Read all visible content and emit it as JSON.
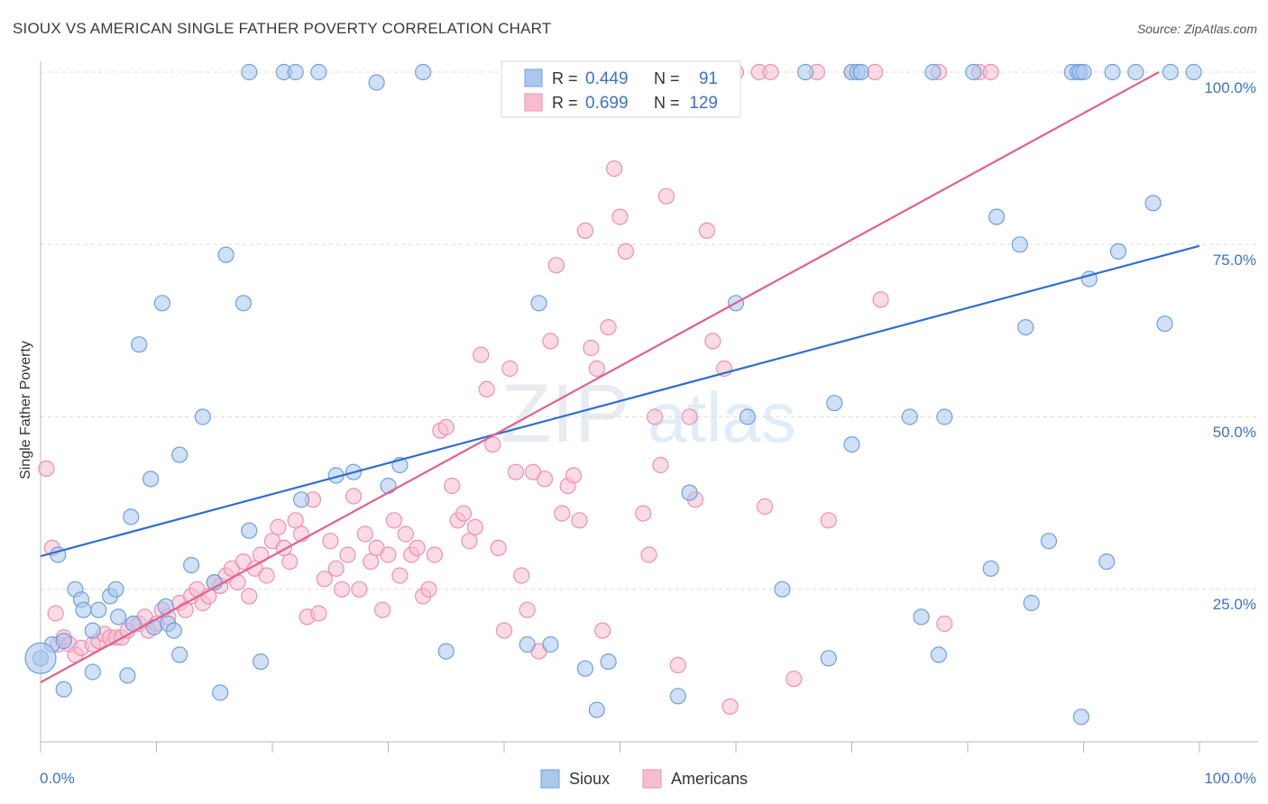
{
  "title": "SIOUX VS AMERICAN SINGLE FATHER POVERTY CORRELATION CHART",
  "source": "Source: ZipAtlas.com",
  "watermark": {
    "zip": "ZIP",
    "atlas": "atlas"
  },
  "colors": {
    "sioux": "#6fa0dd",
    "sioux_fill": "#aac7ec",
    "sioux_line": "#2f6fcb",
    "americans": "#ee8fae",
    "americans_fill": "#f6bdd0",
    "americans_line": "#e2608c",
    "axis_label": "#3b73c8"
  },
  "legend_top": {
    "rows": [
      {
        "r_label": "R =",
        "r_value": "0.449",
        "n_label": "N =",
        "n_value": "91"
      },
      {
        "r_label": "R =",
        "r_value": "0.699",
        "n_label": "N =",
        "n_value": "129"
      }
    ]
  },
  "legend_bottom": {
    "items": [
      "Sioux",
      "Americans"
    ]
  },
  "chart_data": {
    "type": "scatter",
    "title": "SIOUX VS AMERICAN SINGLE FATHER POVERTY CORRELATION CHART",
    "ylabel": "Single Father Poverty",
    "xlabel": "",
    "xlim": [
      0,
      100
    ],
    "ylim": [
      0,
      100
    ],
    "x_tick_labels": [
      "0.0%",
      "100.0%"
    ],
    "y_tick_labels": [
      "25.0%",
      "50.0%",
      "75.0%",
      "100.0%"
    ],
    "y_ticks": [
      25,
      50,
      75,
      100
    ],
    "grid": true,
    "legend": "top-center",
    "series": [
      {
        "name": "Sioux",
        "r": 0.449,
        "n": 91,
        "trend": {
          "x": [
            0,
            100
          ],
          "y": [
            29.8,
            74.8
          ]
        },
        "points": [
          [
            0,
            15
          ],
          [
            1,
            17
          ],
          [
            1.5,
            30
          ],
          [
            2,
            10.5
          ],
          [
            2,
            17.5
          ],
          [
            3,
            25
          ],
          [
            3.5,
            23.5
          ],
          [
            3.7,
            22
          ],
          [
            4.5,
            13
          ],
          [
            4.5,
            19
          ],
          [
            5,
            22
          ],
          [
            6,
            24
          ],
          [
            6.5,
            25
          ],
          [
            6.7,
            21
          ],
          [
            7.5,
            12.5
          ],
          [
            7.8,
            35.5
          ],
          [
            8,
            20
          ],
          [
            8.5,
            60.5
          ],
          [
            9.5,
            41
          ],
          [
            9.8,
            19.5
          ],
          [
            10.5,
            66.5
          ],
          [
            10.8,
            22.5
          ],
          [
            11,
            20
          ],
          [
            11.5,
            19
          ],
          [
            12,
            15.5
          ],
          [
            12,
            44.5
          ],
          [
            13,
            28.5
          ],
          [
            14,
            50
          ],
          [
            15,
            26
          ],
          [
            15.5,
            10
          ],
          [
            16,
            73.5
          ],
          [
            17.5,
            66.5
          ],
          [
            18,
            33.5
          ],
          [
            18,
            100
          ],
          [
            19,
            14.5
          ],
          [
            21,
            100
          ],
          [
            22,
            100
          ],
          [
            22.5,
            38
          ],
          [
            24,
            100
          ],
          [
            25.5,
            41.5
          ],
          [
            27,
            42
          ],
          [
            29,
            98.5
          ],
          [
            30,
            40
          ],
          [
            31,
            43
          ],
          [
            33,
            100
          ],
          [
            35,
            16
          ],
          [
            42,
            17
          ],
          [
            43,
            66.5
          ],
          [
            44,
            17
          ],
          [
            47,
            13.5
          ],
          [
            48,
            7.5
          ],
          [
            49,
            14.5
          ],
          [
            55,
            9.5
          ],
          [
            56,
            39
          ],
          [
            59,
            100
          ],
          [
            60,
            66.5
          ],
          [
            61,
            50
          ],
          [
            64,
            25
          ],
          [
            66,
            100
          ],
          [
            68,
            15
          ],
          [
            68.5,
            52
          ],
          [
            70,
            100
          ],
          [
            70.5,
            100
          ],
          [
            70.8,
            100
          ],
          [
            70,
            46
          ],
          [
            75,
            50
          ],
          [
            76,
            21
          ],
          [
            77,
            100
          ],
          [
            77.5,
            15.5
          ],
          [
            78,
            50
          ],
          [
            80.5,
            100
          ],
          [
            82,
            28
          ],
          [
            82.5,
            79
          ],
          [
            84.5,
            75
          ],
          [
            85,
            63
          ],
          [
            85.5,
            23
          ],
          [
            87,
            32
          ],
          [
            89,
            100
          ],
          [
            89.5,
            100
          ],
          [
            89.7,
            100
          ],
          [
            89.8,
            6.5
          ],
          [
            90,
            100
          ],
          [
            90.5,
            70
          ],
          [
            92,
            29
          ],
          [
            92.5,
            100
          ],
          [
            93,
            74
          ],
          [
            94.5,
            100
          ],
          [
            96,
            81
          ],
          [
            97,
            63.5
          ],
          [
            97.5,
            100
          ],
          [
            99.5,
            100
          ]
        ]
      },
      {
        "name": "Americans",
        "r": 0.699,
        "n": 129,
        "trend": {
          "x": [
            0,
            96.5
          ],
          "y": [
            11.5,
            100
          ]
        },
        "points": [
          [
            0.5,
            42.5
          ],
          [
            1,
            31
          ],
          [
            1.3,
            21.5
          ],
          [
            1.5,
            17
          ],
          [
            2,
            18
          ],
          [
            2.5,
            17
          ],
          [
            3,
            15.5
          ],
          [
            3.5,
            16.5
          ],
          [
            4.5,
            17
          ],
          [
            5,
            17.5
          ],
          [
            5.5,
            18.5
          ],
          [
            6,
            18
          ],
          [
            6.5,
            18
          ],
          [
            7,
            18
          ],
          [
            7.5,
            19
          ],
          [
            8,
            20
          ],
          [
            8.5,
            20
          ],
          [
            9,
            21
          ],
          [
            9.3,
            19
          ],
          [
            10,
            20
          ],
          [
            10.5,
            22
          ],
          [
            11,
            21
          ],
          [
            12,
            23
          ],
          [
            12.5,
            22
          ],
          [
            13,
            24
          ],
          [
            13.5,
            25
          ],
          [
            14,
            23
          ],
          [
            14.5,
            24
          ],
          [
            15,
            26
          ],
          [
            15.5,
            25.5
          ],
          [
            16,
            27
          ],
          [
            16.5,
            28
          ],
          [
            17,
            26
          ],
          [
            17.5,
            29
          ],
          [
            18,
            24
          ],
          [
            18.5,
            28
          ],
          [
            19,
            30
          ],
          [
            19.5,
            27
          ],
          [
            20,
            32
          ],
          [
            20.5,
            34
          ],
          [
            21,
            31
          ],
          [
            21.5,
            29
          ],
          [
            22,
            35
          ],
          [
            22.5,
            33
          ],
          [
            23,
            21
          ],
          [
            23.5,
            38
          ],
          [
            24,
            21.5
          ],
          [
            24.5,
            26.5
          ],
          [
            25,
            32
          ],
          [
            25.5,
            28
          ],
          [
            26,
            25
          ],
          [
            26.5,
            30
          ],
          [
            27,
            38.5
          ],
          [
            27.5,
            25
          ],
          [
            28,
            33
          ],
          [
            28.5,
            29
          ],
          [
            29,
            31
          ],
          [
            29.5,
            22
          ],
          [
            30,
            30
          ],
          [
            30.5,
            35
          ],
          [
            31,
            27
          ],
          [
            31.5,
            33
          ],
          [
            32,
            30
          ],
          [
            32.5,
            31
          ],
          [
            33,
            24
          ],
          [
            33.5,
            25
          ],
          [
            34,
            30
          ],
          [
            34.5,
            48
          ],
          [
            35,
            48.5
          ],
          [
            35.5,
            40
          ],
          [
            36,
            35
          ],
          [
            36.5,
            36
          ],
          [
            37,
            32
          ],
          [
            37.5,
            34
          ],
          [
            38,
            59
          ],
          [
            38.5,
            54
          ],
          [
            39,
            46
          ],
          [
            39.5,
            31
          ],
          [
            40,
            19
          ],
          [
            40.5,
            57
          ],
          [
            41,
            42
          ],
          [
            41.5,
            27
          ],
          [
            42,
            22
          ],
          [
            42.5,
            42
          ],
          [
            43,
            16
          ],
          [
            43.5,
            41
          ],
          [
            44,
            61
          ],
          [
            44.5,
            72
          ],
          [
            45,
            36
          ],
          [
            45.5,
            40
          ],
          [
            46,
            41.5
          ],
          [
            46.5,
            35
          ],
          [
            47,
            77
          ],
          [
            47.5,
            60
          ],
          [
            48,
            57
          ],
          [
            48.5,
            19
          ],
          [
            49,
            63
          ],
          [
            49.5,
            86
          ],
          [
            50,
            79
          ],
          [
            50.5,
            74
          ],
          [
            51,
            100
          ],
          [
            51.5,
            100
          ],
          [
            52,
            36
          ],
          [
            52.5,
            30
          ],
          [
            53,
            50
          ],
          [
            53.5,
            43
          ],
          [
            54,
            82
          ],
          [
            55,
            14
          ],
          [
            56,
            50
          ],
          [
            56.5,
            38
          ],
          [
            57,
            100
          ],
          [
            57.5,
            77
          ],
          [
            58,
            61
          ],
          [
            59,
            57
          ],
          [
            59.5,
            8
          ],
          [
            60,
            100
          ],
          [
            62,
            100
          ],
          [
            62.5,
            37
          ],
          [
            63,
            100
          ],
          [
            65,
            12
          ],
          [
            67,
            100
          ],
          [
            68,
            35
          ],
          [
            70,
            100
          ],
          [
            72,
            100
          ],
          [
            72.5,
            67
          ],
          [
            77.5,
            100
          ],
          [
            78,
            20
          ],
          [
            81,
            100
          ],
          [
            82,
            100
          ]
        ]
      }
    ]
  }
}
